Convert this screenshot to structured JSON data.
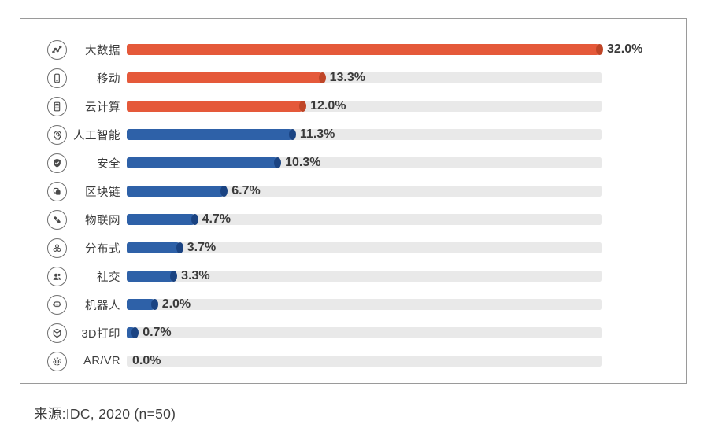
{
  "chart_data": {
    "type": "bar",
    "orientation": "horizontal",
    "title": "",
    "xlabel": "",
    "ylabel": "",
    "xlim": [
      0,
      32
    ],
    "grid": false,
    "legend": null,
    "categories": [
      "大数据",
      "移动",
      "云计算",
      "人工智能",
      "安全",
      "区块链",
      "物联网",
      "分布式",
      "社交",
      "机器人",
      "3D打印",
      "AR/VR"
    ],
    "values": [
      32.0,
      13.3,
      12.0,
      11.3,
      10.3,
      6.7,
      4.7,
      3.7,
      3.3,
      2.0,
      0.7,
      0.0
    ],
    "value_labels": [
      "32.0%",
      "13.3%",
      "12.0%",
      "11.3%",
      "10.3%",
      "6.7%",
      "4.7%",
      "3.7%",
      "3.3%",
      "2.0%",
      "0.7%",
      "0.0%"
    ],
    "bar_colors": [
      "#e5593a",
      "#e5593a",
      "#e5593a",
      "#2e61a8",
      "#2e61a8",
      "#2e61a8",
      "#2e61a8",
      "#2e61a8",
      "#2e61a8",
      "#2e61a8",
      "#2e61a8",
      "#2e61a8"
    ],
    "cap_colors": [
      "#bf4527",
      "#bf4527",
      "#bf4527",
      "#1a4382",
      "#1a4382",
      "#1a4382",
      "#1a4382",
      "#1a4382",
      "#1a4382",
      "#1a4382",
      "#1a4382",
      "#1a4382"
    ],
    "track_color": "#e9e9e9",
    "icons": [
      "trend-chart-icon",
      "smartphone-icon",
      "calculator-icon",
      "ai-head-icon",
      "shield-check-icon",
      "blockchain-icon",
      "iot-links-icon",
      "distributed-nodes-icon",
      "social-people-icon",
      "robot-icon",
      "3d-cube-icon",
      "arvr-icon"
    ],
    "source": "来源:IDC, 2020 (n=50)"
  }
}
